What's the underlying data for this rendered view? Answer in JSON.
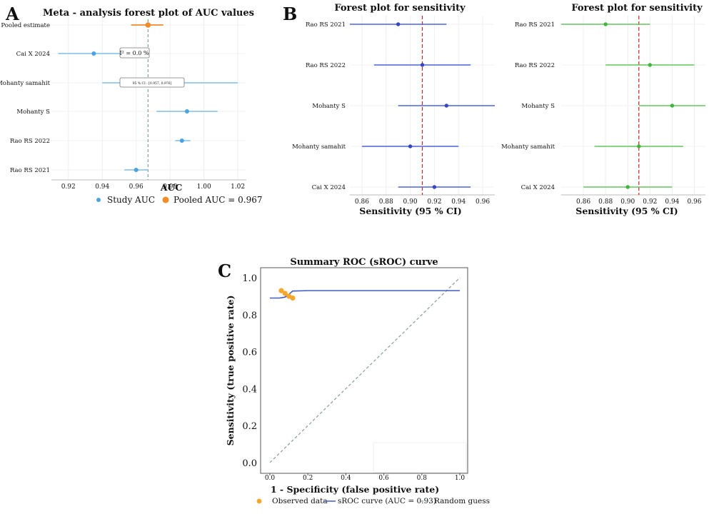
{
  "panel_labels": [
    "A",
    "B",
    "C"
  ],
  "chart_data": [
    {
      "type": "forest",
      "panel": "A",
      "title": "Meta - analysis forest plot of AUC values",
      "xlabel": "AUC",
      "ylabel": "",
      "xlim": [
        0.91,
        1.025
      ],
      "xticks": [
        "0.92",
        "0.94",
        "0.96",
        "0.98",
        "1.00",
        "1.02"
      ],
      "categories": [
        "Pooled estimate",
        "Cai X 2024",
        "Mohanty samahit",
        "Mohanty S",
        "Rao RS 2022",
        "Rao RS 2021"
      ],
      "series": [
        {
          "name": "Study AUC",
          "points": [
            {
              "label": "Cai X 2024",
              "x": 0.935,
              "lo": 0.914,
              "hi": 0.956
            },
            {
              "label": "Mohanty samahit",
              "x": null,
              "lo": 0.94,
              "hi": 1.02
            },
            {
              "label": "Mohanty S",
              "x": 0.99,
              "lo": 0.972,
              "hi": 1.008
            },
            {
              "label": "Rao RS 2022",
              "x": 0.987,
              "lo": 0.983,
              "hi": 0.992
            },
            {
              "label": "Rao RS 2021",
              "x": 0.96,
              "lo": 0.953,
              "hi": 0.967
            }
          ]
        },
        {
          "name": "Pooled AUC = 0.967",
          "points": [
            {
              "label": "Pooled estimate",
              "x": 0.967,
              "lo": 0.957,
              "hi": 0.976
            }
          ]
        }
      ],
      "reference_line": 0.967,
      "annotations": [
        "I² = 0.0 %",
        "95 % CI : [0.957, 0.976]"
      ],
      "grid": true,
      "legend": "bottom"
    },
    {
      "type": "forest",
      "panel": "B-left",
      "title": "Forest plot for sensitivity",
      "xlabel": "Sensitivity (95 % CI)",
      "xlim": [
        0.85,
        0.97
      ],
      "xticks": [
        "0.86",
        "0.88",
        "0.90",
        "0.92",
        "0.94",
        "0.96"
      ],
      "categories": [
        "Rao RS 2021",
        "Rao RS 2022",
        "Mohanty S",
        "Mohanty samahit",
        "Cai X 2024"
      ],
      "series": [
        {
          "name": "",
          "points": [
            {
              "label": "Rao RS 2021",
              "x": 0.89,
              "lo": 0.85,
              "hi": 0.93
            },
            {
              "label": "Rao RS 2022",
              "x": 0.91,
              "lo": 0.87,
              "hi": 0.95
            },
            {
              "label": "Mohanty S",
              "x": 0.93,
              "lo": 0.89,
              "hi": 0.97
            },
            {
              "label": "Mohanty samahit",
              "x": 0.9,
              "lo": 0.86,
              "hi": 0.94
            },
            {
              "label": "Cai X 2024",
              "x": 0.92,
              "lo": 0.89,
              "hi": 0.95
            }
          ]
        }
      ],
      "reference_line": 0.91,
      "grid": true
    },
    {
      "type": "forest",
      "panel": "B-right",
      "title": "Forest plot for sensitivity",
      "xlabel": "Sensitivity (95 % CI)",
      "xlim": [
        0.84,
        0.97
      ],
      "xticks": [
        "0.86",
        "0.88",
        "0.90",
        "0.92",
        "0.94",
        "0.96"
      ],
      "categories": [
        "Rao RS 2021",
        "Rao RS 2022",
        "Mohanty S",
        "Mohanty samahit",
        "Cai X 2024"
      ],
      "series": [
        {
          "name": "",
          "points": [
            {
              "label": "Rao RS 2021",
              "x": 0.88,
              "lo": 0.84,
              "hi": 0.92
            },
            {
              "label": "Rao RS 2022",
              "x": 0.92,
              "lo": 0.88,
              "hi": 0.96
            },
            {
              "label": "Mohanty S",
              "x": 0.94,
              "lo": 0.91,
              "hi": 0.97
            },
            {
              "label": "Mohanty samahit",
              "x": 0.91,
              "lo": 0.87,
              "hi": 0.95
            },
            {
              "label": "Cai X 2024",
              "x": 0.9,
              "lo": 0.86,
              "hi": 0.94
            }
          ]
        }
      ],
      "reference_line": 0.91,
      "grid": true
    },
    {
      "type": "line",
      "panel": "C",
      "title": "Summary ROC (sROC) curve",
      "xlabel": "1 - Specificity (false positive rate)",
      "ylabel": "Sensitivity (true positive rate)",
      "xlim": [
        0.0,
        1.0
      ],
      "ylim": [
        0.0,
        1.0
      ],
      "xticks": [
        "0.0",
        "0.2",
        "0.4",
        "0.6",
        "0.8",
        "1.0"
      ],
      "yticks": [
        "0.0",
        "0.2",
        "0.4",
        "0.6",
        "0.8",
        "1.0"
      ],
      "series": [
        {
          "name": "Observed data",
          "kind": "scatter",
          "x": [
            0.06,
            0.08,
            0.1,
            0.12
          ],
          "y": [
            0.93,
            0.915,
            0.9,
            0.89
          ]
        },
        {
          "name": "sROC curve (AUC = 0.93)",
          "kind": "line",
          "x": [
            0.0,
            0.05,
            0.08,
            0.1,
            0.12,
            0.2,
            0.5,
            1.0
          ],
          "y": [
            0.89,
            0.89,
            0.895,
            0.91,
            0.928,
            0.93,
            0.93,
            0.93
          ]
        },
        {
          "name": "Random guess",
          "kind": "dashed",
          "x": [
            0.0,
            1.0
          ],
          "y": [
            0.0,
            1.0
          ]
        }
      ],
      "grid": false,
      "legend": "bottom"
    }
  ],
  "colors": {
    "study_blue": "#4aa3e0",
    "study_line": "#8cc8ee",
    "pooled_orange": "#f08a2a",
    "forest_blue_line": "#4d64d6",
    "forest_blue_pt": "#3447c2",
    "forest_green_line": "#63c75a",
    "forest_green_pt": "#3fb63a",
    "ref_red": "#d62020",
    "sroc_line": "#3f5bc9",
    "obs_point": "#f4a72a",
    "random_line": "#8a9a98"
  }
}
